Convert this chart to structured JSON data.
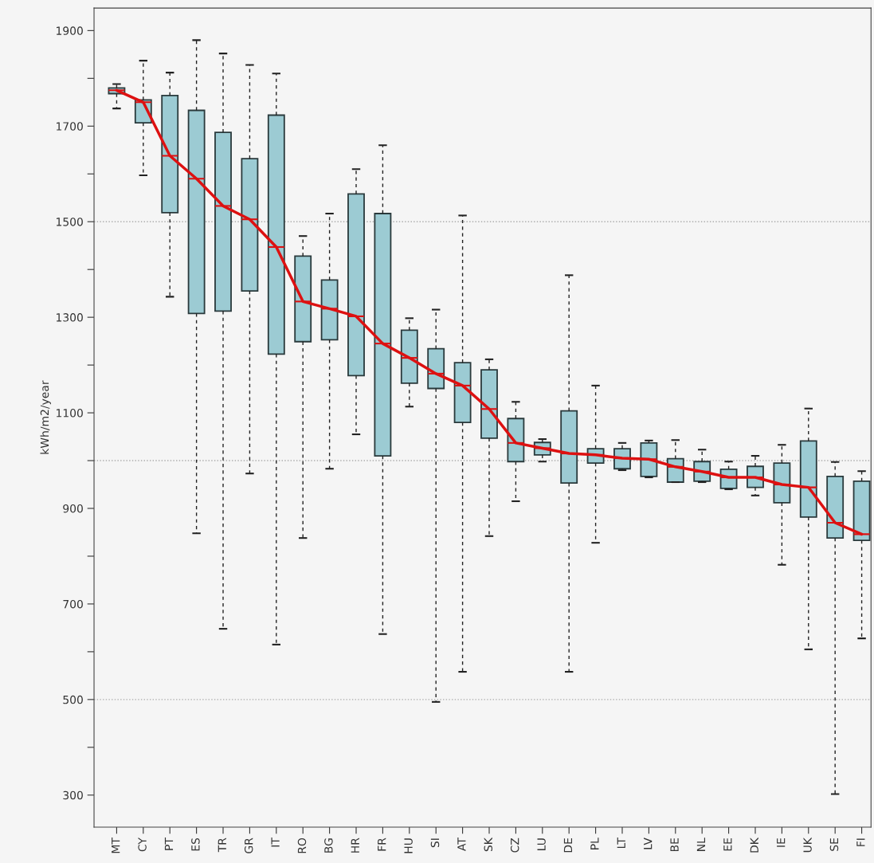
{
  "chart_data": {
    "type": "box",
    "ylabel": "kWh/m2/year",
    "categories": [
      "MT",
      "CY",
      "PT",
      "ES",
      "TR",
      "GR",
      "IT",
      "RO",
      "BG",
      "HR",
      "FR",
      "HU",
      "SI",
      "AT",
      "SK",
      "CZ",
      "LU",
      "DE",
      "PL",
      "LT",
      "LV",
      "BE",
      "NL",
      "EE",
      "DK",
      "IE",
      "UK",
      "SE",
      "FI"
    ],
    "boxes": [
      {
        "low": 1737,
        "q1": 1768,
        "median": 1775,
        "q3": 1780,
        "high": 1788
      },
      {
        "low": 1597,
        "q1": 1707,
        "median": 1750,
        "q3": 1755,
        "high": 1837
      },
      {
        "low": 1343,
        "q1": 1519,
        "median": 1638,
        "q3": 1764,
        "high": 1812
      },
      {
        "low": 848,
        "q1": 1308,
        "median": 1590,
        "q3": 1733,
        "high": 1880
      },
      {
        "low": 648,
        "q1": 1313,
        "median": 1533,
        "q3": 1687,
        "high": 1852
      },
      {
        "low": 973,
        "q1": 1355,
        "median": 1505,
        "q3": 1632,
        "high": 1828
      },
      {
        "low": 615,
        "q1": 1223,
        "median": 1447,
        "q3": 1723,
        "high": 1810
      },
      {
        "low": 838,
        "q1": 1249,
        "median": 1333,
        "q3": 1428,
        "high": 1470
      },
      {
        "low": 983,
        "q1": 1253,
        "median": 1318,
        "q3": 1378,
        "high": 1517
      },
      {
        "low": 1055,
        "q1": 1178,
        "median": 1302,
        "q3": 1558,
        "high": 1610
      },
      {
        "low": 637,
        "q1": 1010,
        "median": 1245,
        "q3": 1517,
        "high": 1660
      },
      {
        "low": 1113,
        "q1": 1162,
        "median": 1215,
        "q3": 1273,
        "high": 1298
      },
      {
        "low": 495,
        "q1": 1151,
        "median": 1182,
        "q3": 1234,
        "high": 1316
      },
      {
        "low": 558,
        "q1": 1080,
        "median": 1157,
        "q3": 1205,
        "high": 1513
      },
      {
        "low": 842,
        "q1": 1047,
        "median": 1108,
        "q3": 1190,
        "high": 1212
      },
      {
        "low": 915,
        "q1": 998,
        "median": 1037,
        "q3": 1088,
        "high": 1123
      },
      {
        "low": 998,
        "q1": 1012,
        "median": 1026,
        "q3": 1038,
        "high": 1045
      },
      {
        "low": 558,
        "q1": 953,
        "median": 1015,
        "q3": 1104,
        "high": 1388
      },
      {
        "low": 828,
        "q1": 995,
        "median": 1012,
        "q3": 1025,
        "high": 1157
      },
      {
        "low": 980,
        "q1": 983,
        "median": 1005,
        "q3": 1025,
        "high": 1037
      },
      {
        "low": 965,
        "q1": 967,
        "median": 1003,
        "q3": 1037,
        "high": 1042
      },
      {
        "low": 955,
        "q1": 955,
        "median": 987,
        "q3": 1004,
        "high": 1043
      },
      {
        "low": 955,
        "q1": 957,
        "median": 977,
        "q3": 998,
        "high": 1023
      },
      {
        "low": 940,
        "q1": 942,
        "median": 965,
        "q3": 982,
        "high": 998
      },
      {
        "low": 927,
        "q1": 944,
        "median": 965,
        "q3": 988,
        "high": 1010
      },
      {
        "low": 782,
        "q1": 912,
        "median": 950,
        "q3": 995,
        "high": 1033
      },
      {
        "low": 605,
        "q1": 882,
        "median": 944,
        "q3": 1041,
        "high": 1109
      },
      {
        "low": 302,
        "q1": 838,
        "median": 870,
        "q3": 967,
        "high": 997
      },
      {
        "low": 628,
        "q1": 833,
        "median": 846,
        "q3": 957,
        "high": 978
      }
    ],
    "color": "#9ccbd3",
    "series": [
      {
        "type": "line",
        "color": "#dd1111",
        "values": [
          1775,
          1750,
          1638,
          1590,
          1533,
          1505,
          1447,
          1333,
          1318,
          1302,
          1245,
          1215,
          1182,
          1157,
          1108,
          1037,
          1026,
          1015,
          1012,
          1005,
          1003,
          987,
          977,
          965,
          965,
          950,
          944,
          870,
          846
        ]
      }
    ],
    "ylim": [
      233,
      1947
    ],
    "yticks": [
      300,
      {
        "value": 400,
        "label": null
      },
      500,
      {
        "value": 600,
        "label": null
      },
      700,
      {
        "value": 800,
        "label": null
      },
      900,
      {
        "value": 1000,
        "label": null
      },
      1100,
      {
        "value": 1200,
        "label": null
      },
      1300,
      {
        "value": 1400,
        "label": null
      },
      1500,
      {
        "value": 1600,
        "label": null
      },
      1700,
      {
        "value": 1800,
        "label": null
      },
      1900
    ],
    "ref_lines": [
      {
        "axis": "y",
        "value": 500,
        "color": "#aaaaaa",
        "line_style": "dotted"
      },
      {
        "axis": "y",
        "value": 1000,
        "color": "#aaaaaa",
        "line_style": "dotted"
      },
      {
        "axis": "y",
        "value": 1500,
        "color": "#aaaaaa",
        "line_style": "dotted"
      }
    ],
    "grid": false,
    "legend": false
  }
}
